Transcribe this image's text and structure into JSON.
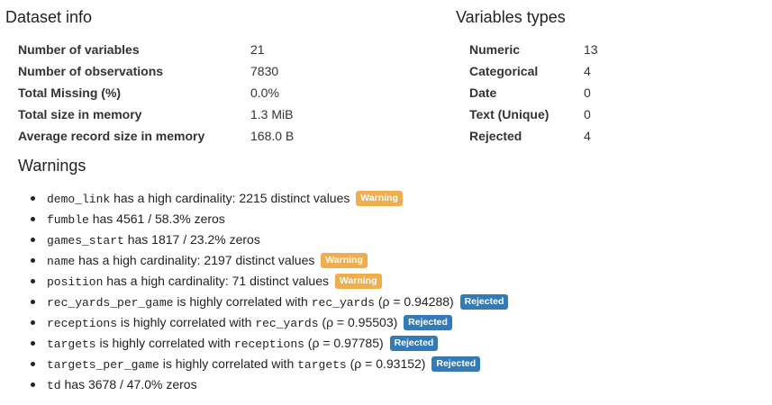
{
  "dataset_info": {
    "title": "Dataset info",
    "rows": [
      {
        "label": "Number of variables",
        "value": "21"
      },
      {
        "label": "Number of observations",
        "value": "7830"
      },
      {
        "label": "Total Missing (%)",
        "value": "0.0%"
      },
      {
        "label": "Total size in memory",
        "value": "1.3 MiB"
      },
      {
        "label": "Average record size in memory",
        "value": "168.0 B"
      }
    ]
  },
  "variable_types": {
    "title": "Variables types",
    "rows": [
      {
        "label": "Numeric",
        "value": "13"
      },
      {
        "label": "Categorical",
        "value": "4"
      },
      {
        "label": "Date",
        "value": "0"
      },
      {
        "label": "Text (Unique)",
        "value": "0"
      },
      {
        "label": "Rejected",
        "value": "4"
      }
    ]
  },
  "warnings": {
    "title": "Warnings",
    "items": [
      {
        "var1": "demo_link",
        "text1": " has a high cardinality: 2215 distinct values ",
        "var2": "",
        "text2": "",
        "badge": "Warning"
      },
      {
        "var1": "fumble",
        "text1": " has 4561 / 58.3% zeros",
        "var2": "",
        "text2": "",
        "badge": ""
      },
      {
        "var1": "games_start",
        "text1": " has 1817 / 23.2% zeros",
        "var2": "",
        "text2": "",
        "badge": ""
      },
      {
        "var1": "name",
        "text1": " has a high cardinality: 2197 distinct values ",
        "var2": "",
        "text2": "",
        "badge": "Warning"
      },
      {
        "var1": "position",
        "text1": " has a high cardinality: 71 distinct values ",
        "var2": "",
        "text2": "",
        "badge": "Warning"
      },
      {
        "var1": "rec_yards_per_game",
        "text1": " is highly correlated with ",
        "var2": "rec_yards",
        "text2": " (ρ = 0.94288) ",
        "badge": "Rejected"
      },
      {
        "var1": "receptions",
        "text1": " is highly correlated with ",
        "var2": "rec_yards",
        "text2": " (ρ = 0.95503) ",
        "badge": "Rejected"
      },
      {
        "var1": "targets",
        "text1": " is highly correlated with ",
        "var2": "receptions",
        "text2": " (ρ = 0.97785) ",
        "badge": "Rejected"
      },
      {
        "var1": "targets_per_game",
        "text1": " is highly correlated with ",
        "var2": "targets",
        "text2": " (ρ = 0.93152) ",
        "badge": "Rejected"
      },
      {
        "var1": "td",
        "text1": " has 3678 / 47.0% zeros",
        "var2": "",
        "text2": "",
        "badge": ""
      }
    ]
  },
  "colors": {
    "warning_badge": "#f0ad4e",
    "rejected_badge": "#337ab7"
  }
}
